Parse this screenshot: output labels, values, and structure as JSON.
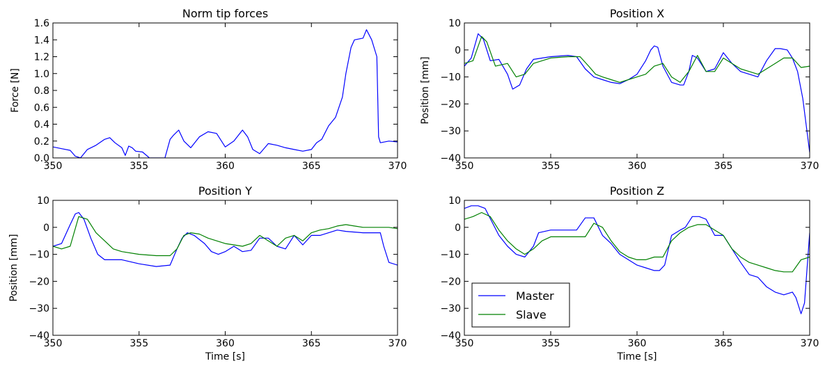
{
  "chart_data": [
    {
      "type": "line",
      "title": "Norm tip forces",
      "xlabel": "",
      "ylabel": "Force [N]",
      "xlim": [
        350,
        370
      ],
      "ylim": [
        0.0,
        1.6
      ],
      "xticks": [
        "350",
        "355",
        "360",
        "365",
        "370"
      ],
      "yticks": [
        "0.0",
        "0.2",
        "0.4",
        "0.6",
        "0.8",
        "1.0",
        "1.2",
        "1.4",
        "1.6"
      ],
      "grid": false,
      "series": [
        {
          "color": "#0000ff",
          "x": [
            350,
            350.5,
            351,
            351.3,
            351.6,
            352,
            352.5,
            353,
            353.3,
            353.6,
            354,
            354.2,
            354.4,
            354.6,
            354.8,
            355.2,
            355.6,
            356,
            356.5,
            356.8,
            357,
            357.3,
            357.6,
            358,
            358.5,
            359,
            359.5,
            360,
            360.5,
            361,
            361.3,
            361.6,
            362,
            362.5,
            363,
            363.5,
            364,
            364.5,
            365,
            365.3,
            365.6,
            366,
            366.4,
            366.8,
            367,
            367.3,
            367.5,
            368,
            368.2,
            368.5,
            368.8,
            368.9,
            369,
            369.5,
            370
          ],
          "y": [
            0.13,
            0.11,
            0.09,
            0.02,
            0.0,
            0.1,
            0.15,
            0.22,
            0.24,
            0.18,
            0.12,
            0.03,
            0.14,
            0.12,
            0.08,
            0.07,
            0.0,
            0.0,
            0.0,
            0.22,
            0.27,
            0.33,
            0.2,
            0.12,
            0.25,
            0.31,
            0.29,
            0.13,
            0.2,
            0.33,
            0.25,
            0.1,
            0.05,
            0.17,
            0.15,
            0.12,
            0.1,
            0.08,
            0.1,
            0.18,
            0.22,
            0.38,
            0.48,
            0.72,
            1.0,
            1.31,
            1.4,
            1.42,
            1.52,
            1.4,
            1.2,
            0.25,
            0.18,
            0.2,
            0.19
          ]
        }
      ]
    },
    {
      "type": "line",
      "title": "Position X",
      "xlabel": "",
      "ylabel": "Position [mm]",
      "xlim": [
        350,
        370
      ],
      "ylim": [
        -40,
        10
      ],
      "xticks": [
        "350",
        "355",
        "360",
        "365",
        "370"
      ],
      "yticks": [
        "−40",
        "−30",
        "−20",
        "−10",
        "0",
        "10"
      ],
      "grid": false,
      "series": [
        {
          "name": "Master",
          "color": "#0000ff",
          "x": [
            350,
            350.4,
            350.8,
            351.1,
            351.5,
            352,
            352.5,
            352.8,
            353.2,
            353.6,
            354,
            355,
            356,
            356.5,
            357,
            357.5,
            358,
            358.5,
            359,
            359.5,
            360,
            360.5,
            360.8,
            361,
            361.2,
            361.5,
            362,
            362.5,
            362.7,
            363,
            363.2,
            363.5,
            364,
            364.5,
            365,
            365.5,
            366,
            366.5,
            367,
            367.5,
            368,
            368.3,
            368.7,
            369,
            369.3,
            369.6,
            370
          ],
          "y": [
            -6,
            -3,
            6,
            4,
            -4,
            -3.5,
            -9,
            -14.5,
            -13,
            -7,
            -3.5,
            -2.5,
            -2,
            -2.5,
            -7,
            -10,
            -11,
            -12,
            -12.5,
            -11,
            -9,
            -4,
            0,
            1.5,
            1,
            -6,
            -12,
            -13,
            -13,
            -8,
            -2,
            -3,
            -8,
            -7,
            -1,
            -5,
            -8,
            -9,
            -10,
            -4,
            0.5,
            0.5,
            0,
            -3,
            -8,
            -18,
            -38
          ]
        },
        {
          "name": "Slave",
          "color": "#008000",
          "x": [
            350,
            350.5,
            351,
            351.3,
            351.8,
            352.5,
            353,
            353.5,
            354,
            355,
            356,
            356.7,
            357.2,
            357.6,
            358,
            358.5,
            359,
            359.5,
            360,
            360.5,
            361,
            361.5,
            362,
            362.5,
            363,
            363.5,
            364,
            364.5,
            365,
            365.5,
            366,
            366.5,
            367,
            367.5,
            368,
            368.5,
            369,
            369.5,
            370
          ],
          "y": [
            -5,
            -4,
            5,
            3,
            -6,
            -5,
            -10,
            -9,
            -5,
            -3,
            -2.5,
            -2.5,
            -6,
            -9,
            -10,
            -11,
            -12,
            -11,
            -10,
            -9,
            -6,
            -5,
            -10,
            -12,
            -8,
            -2,
            -8,
            -8,
            -3,
            -5,
            -7,
            -8,
            -9,
            -7,
            -5,
            -3,
            -3,
            -6.5,
            -6
          ]
        }
      ]
    },
    {
      "type": "line",
      "title": "Position Y",
      "xlabel": "Time [s]",
      "ylabel": "Position [mm]",
      "xlim": [
        350,
        370
      ],
      "ylim": [
        -40,
        10
      ],
      "xticks": [
        "350",
        "355",
        "360",
        "365",
        "370"
      ],
      "yticks": [
        "−40",
        "−30",
        "−20",
        "−10",
        "0",
        "10"
      ],
      "grid": false,
      "series": [
        {
          "name": "Master",
          "color": "#0000ff",
          "x": [
            350,
            350.5,
            351,
            351.3,
            351.5,
            351.8,
            352.2,
            352.6,
            353,
            354,
            355,
            356,
            356.8,
            357.2,
            357.5,
            357.8,
            358.2,
            358.8,
            359.2,
            359.6,
            360,
            360.5,
            361,
            361.5,
            362,
            362.5,
            363,
            363.5,
            364,
            364.5,
            365,
            365.5,
            366,
            366.5,
            367,
            368,
            369,
            369.2,
            369.5,
            370
          ],
          "y": [
            -7,
            -6,
            1,
            5,
            5.5,
            3,
            -4,
            -10,
            -12,
            -12,
            -13.5,
            -14.5,
            -14,
            -8,
            -4,
            -2,
            -3,
            -6,
            -9,
            -10,
            -9,
            -7,
            -9,
            -8.5,
            -4,
            -4,
            -7,
            -8,
            -3,
            -6.5,
            -3,
            -3,
            -2,
            -1,
            -1.5,
            -2,
            -2,
            -7,
            -13,
            -14
          ]
        },
        {
          "name": "Slave",
          "color": "#008000",
          "x": [
            350,
            350.5,
            351,
            351.5,
            352,
            352.5,
            353,
            353.5,
            354,
            355,
            356,
            356.8,
            357.2,
            357.6,
            358,
            358.5,
            359,
            359.5,
            360,
            360.5,
            361,
            361.5,
            362,
            362.5,
            363,
            363.5,
            364,
            364.5,
            365,
            365.5,
            366,
            366.5,
            367,
            367.5,
            368,
            369,
            369.5,
            370
          ],
          "y": [
            -7,
            -8,
            -7,
            4,
            3,
            -2,
            -5,
            -8,
            -9,
            -10,
            -10.5,
            -10.5,
            -8,
            -3,
            -2,
            -2.5,
            -4,
            -5,
            -6,
            -6.5,
            -7,
            -6,
            -3,
            -5,
            -7,
            -4,
            -3,
            -5,
            -2,
            -1,
            -0.5,
            0.5,
            1,
            0.5,
            0,
            0,
            0,
            -0.5
          ]
        }
      ]
    },
    {
      "type": "line",
      "title": "Position Z",
      "xlabel": "Time [s]",
      "ylabel": "",
      "xlim": [
        350,
        370
      ],
      "ylim": [
        -40,
        10
      ],
      "xticks": [
        "350",
        "355",
        "360",
        "365",
        "370"
      ],
      "yticks": [
        "−40",
        "−30",
        "−20",
        "−10",
        "0",
        "10"
      ],
      "grid": false,
      "legend": {
        "placement": "lower-left",
        "entries": [
          "Master",
          "Slave"
        ]
      },
      "series": [
        {
          "name": "Master",
          "color": "#0000ff",
          "x": [
            350,
            350.4,
            350.8,
            351.2,
            351.6,
            352,
            352.5,
            353,
            353.5,
            354,
            354.3,
            355,
            356,
            356.5,
            357,
            357.5,
            358,
            358.5,
            359,
            359.5,
            360,
            360.5,
            361,
            361.3,
            361.6,
            362,
            362.5,
            362.8,
            363.2,
            363.6,
            364,
            364.5,
            365,
            365.5,
            366,
            366.5,
            367,
            367.5,
            368,
            368.5,
            369,
            369.2,
            369.5,
            369.7,
            370
          ],
          "y": [
            7,
            8,
            8,
            7,
            2,
            -3,
            -7,
            -10,
            -11,
            -7,
            -2,
            -1,
            -1,
            -1,
            3.5,
            3.5,
            -3,
            -6,
            -10,
            -12,
            -14,
            -15,
            -16,
            -16,
            -14,
            -3,
            -1,
            0,
            4,
            4,
            3,
            -3,
            -3,
            -8,
            -13,
            -17.5,
            -18.5,
            -22,
            -24,
            -25,
            -24,
            -26,
            -32,
            -28,
            -2
          ]
        },
        {
          "name": "Slave",
          "color": "#008000",
          "x": [
            350,
            350.5,
            351,
            351.5,
            352,
            352.5,
            353,
            353.5,
            354,
            354.5,
            355,
            356,
            357,
            357.5,
            358,
            358.5,
            359,
            359.5,
            360,
            360.5,
            361,
            361.5,
            362,
            362.5,
            363,
            363.5,
            364,
            364.5,
            365,
            365.5,
            366,
            366.5,
            367,
            367.5,
            368,
            368.5,
            369,
            369.5,
            370
          ],
          "y": [
            3,
            4,
            5.5,
            4,
            -1,
            -5,
            -8,
            -10,
            -8,
            -5,
            -3.5,
            -3.5,
            -3.5,
            1.5,
            0,
            -5,
            -9,
            -11,
            -12,
            -12,
            -11,
            -11,
            -5,
            -2,
            0,
            1,
            1,
            -1,
            -3,
            -8,
            -11,
            -13,
            -14,
            -15,
            -16,
            -16.5,
            -16.5,
            -12,
            -11
          ]
        }
      ]
    }
  ]
}
